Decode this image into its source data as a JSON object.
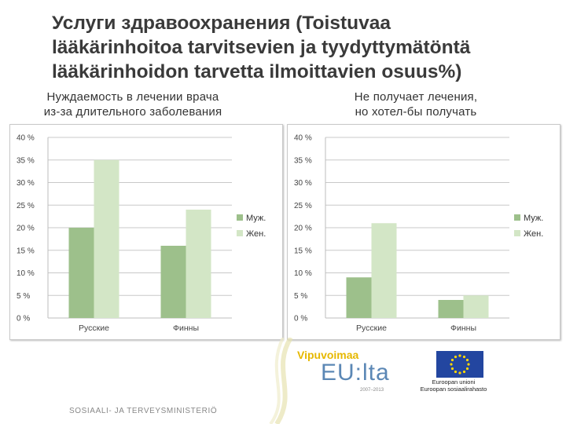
{
  "slide": {
    "title": "Услуги здравоохранения (Toistuvaa\nlääkärinhoitoa tarvitsevien ja tyydyttymätöntä\nlääkärinhoidon tarvetta ilmoittavien osuus%)",
    "footer_text": "SOSIAALI- JA TERVEYSMINISTERIÖ"
  },
  "left_panel": {
    "subtitle": "Нуждаемость в лечении врача\nиз-за длительного заболевания"
  },
  "right_panel": {
    "subtitle": "Не получает лечения,\nно хотел-бы получать"
  },
  "logos": {
    "vipuvoimaa_line1": "Vipuvoimaa",
    "vipuvoimaa_line2": "EU:lta",
    "vipuvoimaa_years": "2007–2013",
    "eu_caption": "Euroopan unioni\nEuroopan sosiaalirahasto"
  },
  "colors": {
    "male": "#9dc08b",
    "female": "#d3e6c6",
    "grid": "#c8c8c8",
    "title": "#3a3a3a"
  },
  "chart_data": [
    {
      "type": "bar",
      "categories": [
        "Русские",
        "Финны"
      ],
      "series": [
        {
          "name": "Муж.",
          "values": [
            20,
            16
          ]
        },
        {
          "name": "Жен.",
          "values": [
            35,
            24
          ]
        }
      ],
      "ylim": [
        0,
        40
      ],
      "yticks": [
        0,
        5,
        10,
        15,
        20,
        25,
        30,
        35,
        40
      ],
      "ytick_labels": [
        "0 %",
        "5 %",
        "10 %",
        "15 %",
        "20 %",
        "25 %",
        "30 %",
        "35 %",
        "40 %"
      ],
      "grid": true,
      "legend": "right"
    },
    {
      "type": "bar",
      "categories": [
        "Русские",
        "Финны"
      ],
      "series": [
        {
          "name": "Муж.",
          "values": [
            9,
            4
          ]
        },
        {
          "name": "Жен.",
          "values": [
            21,
            5
          ]
        }
      ],
      "ylim": [
        0,
        40
      ],
      "yticks": [
        0,
        5,
        10,
        15,
        20,
        25,
        30,
        35,
        40
      ],
      "ytick_labels": [
        "0 %",
        "5 %",
        "10 %",
        "15 %",
        "20 %",
        "25 %",
        "30 %",
        "35 %",
        "40 %"
      ],
      "grid": true,
      "legend": "right"
    }
  ]
}
